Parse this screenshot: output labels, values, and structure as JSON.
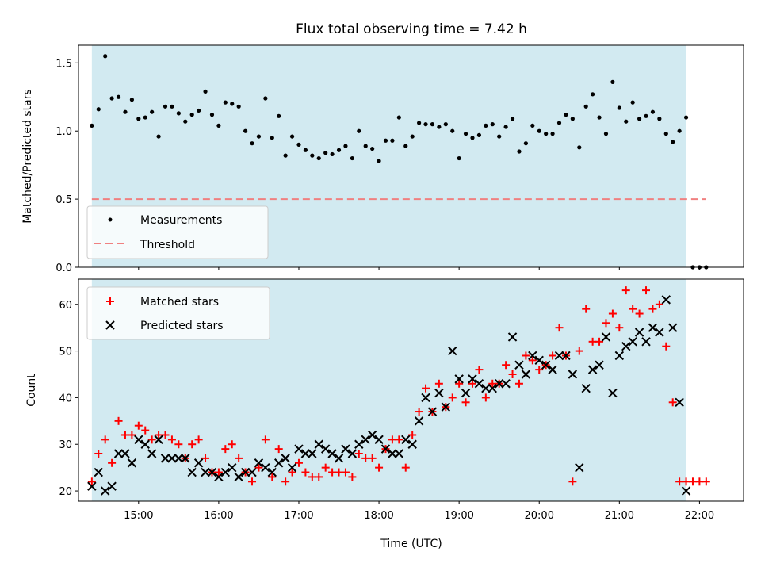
{
  "title": "Flux total observing time = 7.42 h",
  "colors": {
    "shade": "#add8e6",
    "measurement": "#000000",
    "threshold": "#f08080",
    "matched": "#ff0000",
    "predicted": "#000000"
  },
  "chart_data": [
    {
      "type": "scatter",
      "ylabel": "Matched/Predicted stars",
      "xlabel": "",
      "xlim": [
        14.25,
        22.55
      ],
      "ylim": [
        0.0,
        1.63
      ],
      "yticks": [
        0.0,
        0.5,
        1.0,
        1.5
      ],
      "ytick_labels": [
        "0.0",
        "0.5",
        "1.0",
        "1.5"
      ],
      "shaded_x_range": [
        "14:25",
        "21:50"
      ],
      "threshold": 0.5,
      "threshold_x_range": [
        "14:25",
        "22:05"
      ],
      "legend": {
        "position": "lower-left",
        "entries": [
          "Measurements",
          "Threshold"
        ]
      },
      "series": [
        {
          "name": "Measurements",
          "x": [
            "14:25",
            "14:30",
            "14:35",
            "14:40",
            "14:45",
            "14:50",
            "14:55",
            "15:00",
            "15:05",
            "15:10",
            "15:15",
            "15:20",
            "15:25",
            "15:30",
            "15:35",
            "15:40",
            "15:45",
            "15:50",
            "15:55",
            "16:00",
            "16:05",
            "16:10",
            "16:15",
            "16:20",
            "16:25",
            "16:30",
            "16:35",
            "16:40",
            "16:45",
            "16:50",
            "16:55",
            "17:00",
            "17:05",
            "17:10",
            "17:15",
            "17:20",
            "17:25",
            "17:30",
            "17:35",
            "17:40",
            "17:45",
            "17:50",
            "17:55",
            "18:00",
            "18:05",
            "18:10",
            "18:15",
            "18:20",
            "18:25",
            "18:30",
            "18:35",
            "18:40",
            "18:45",
            "18:50",
            "18:55",
            "19:00",
            "19:05",
            "19:10",
            "19:15",
            "19:20",
            "19:25",
            "19:30",
            "19:35",
            "19:40",
            "19:45",
            "19:50",
            "19:55",
            "20:00",
            "20:05",
            "20:10",
            "20:15",
            "20:20",
            "20:25",
            "20:30",
            "20:35",
            "20:40",
            "20:45",
            "20:50",
            "20:55",
            "21:00",
            "21:05",
            "21:10",
            "21:15",
            "21:20",
            "21:25",
            "21:30",
            "21:35",
            "21:40",
            "21:45",
            "21:50",
            "21:55",
            "22:00",
            "22:05"
          ],
          "y": [
            1.04,
            1.16,
            1.55,
            1.24,
            1.25,
            1.14,
            1.23,
            1.09,
            1.1,
            1.14,
            0.96,
            1.18,
            1.18,
            1.13,
            1.07,
            1.12,
            1.15,
            1.29,
            1.12,
            1.04,
            1.21,
            1.2,
            1.18,
            1.0,
            0.91,
            0.96,
            1.24,
            0.95,
            1.11,
            0.82,
            0.96,
            0.9,
            0.86,
            0.82,
            0.8,
            0.84,
            0.83,
            0.86,
            0.89,
            0.8,
            1.0,
            0.89,
            0.87,
            0.78,
            0.93,
            0.93,
            1.1,
            0.89,
            0.96,
            1.06,
            1.05,
            1.05,
            1.03,
            1.05,
            1.0,
            0.8,
            0.98,
            0.95,
            0.97,
            1.04,
            1.05,
            0.96,
            1.03,
            1.09,
            0.85,
            0.91,
            1.04,
            1.0,
            0.98,
            0.98,
            1.06,
            1.12,
            1.09,
            0.88,
            1.18,
            1.27,
            1.1,
            0.98,
            1.36,
            1.17,
            1.07,
            1.21,
            1.09,
            1.11,
            1.14,
            1.09,
            0.98,
            0.92,
            1.0,
            1.1,
            0.0,
            0.0,
            0.0
          ]
        }
      ]
    },
    {
      "type": "scatter",
      "ylabel": "Count",
      "xlabel": "Time (UTC)",
      "xlim": [
        14.25,
        22.55
      ],
      "ylim": [
        17.8,
        65.4
      ],
      "xticks": [
        "15:00",
        "16:00",
        "17:00",
        "18:00",
        "19:00",
        "20:00",
        "21:00",
        "22:00"
      ],
      "yticks": [
        20,
        30,
        40,
        50,
        60
      ],
      "ytick_labels": [
        "20",
        "30",
        "40",
        "50",
        "60"
      ],
      "shaded_x_range": [
        "14:25",
        "21:50"
      ],
      "legend": {
        "position": "top-left",
        "entries": [
          "Matched stars",
          "Predicted stars"
        ]
      },
      "series": [
        {
          "name": "Matched stars",
          "x": [
            "14:25",
            "14:30",
            "14:35",
            "14:40",
            "14:45",
            "14:50",
            "14:55",
            "15:00",
            "15:05",
            "15:10",
            "15:15",
            "15:20",
            "15:25",
            "15:30",
            "15:35",
            "15:40",
            "15:45",
            "15:50",
            "15:55",
            "16:00",
            "16:05",
            "16:10",
            "16:15",
            "16:20",
            "16:25",
            "16:30",
            "16:35",
            "16:40",
            "16:45",
            "16:50",
            "16:55",
            "17:00",
            "17:05",
            "17:10",
            "17:15",
            "17:20",
            "17:25",
            "17:30",
            "17:35",
            "17:40",
            "17:45",
            "17:50",
            "17:55",
            "18:00",
            "18:05",
            "18:10",
            "18:15",
            "18:20",
            "18:25",
            "18:30",
            "18:35",
            "18:40",
            "18:45",
            "18:50",
            "18:55",
            "19:00",
            "19:05",
            "19:10",
            "19:15",
            "19:20",
            "19:25",
            "19:30",
            "19:35",
            "19:40",
            "19:45",
            "19:50",
            "19:55",
            "20:00",
            "20:05",
            "20:10",
            "20:15",
            "20:20",
            "20:25",
            "20:30",
            "20:35",
            "20:40",
            "20:45",
            "20:50",
            "20:55",
            "21:00",
            "21:05",
            "21:10",
            "21:15",
            "21:20",
            "21:25",
            "21:30",
            "21:35",
            "21:40",
            "21:45",
            "21:50",
            "21:55",
            "22:00",
            "22:05"
          ],
          "y": [
            22,
            28,
            31,
            26,
            35,
            32,
            32,
            34,
            33,
            31,
            32,
            32,
            31,
            30,
            27,
            30,
            31,
            27,
            24,
            24,
            29,
            30,
            27,
            24,
            22,
            25,
            31,
            23,
            29,
            22,
            24,
            26,
            24,
            23,
            23,
            25,
            24,
            24,
            24,
            23,
            28,
            27,
            27,
            25,
            29,
            31,
            31,
            25,
            32,
            37,
            42,
            37,
            43,
            38,
            40,
            43,
            39,
            43,
            46,
            40,
            43,
            43,
            47,
            45,
            43,
            49,
            48,
            46,
            47,
            49,
            55,
            49,
            22,
            50,
            59,
            52,
            52,
            56,
            58,
            55,
            63,
            59,
            58,
            63,
            59,
            60,
            51,
            39,
            22,
            22,
            22,
            22,
            22
          ]
        },
        {
          "name": "Predicted stars",
          "x": [
            "14:25",
            "14:30",
            "14:35",
            "14:40",
            "14:45",
            "14:50",
            "14:55",
            "15:00",
            "15:05",
            "15:10",
            "15:15",
            "15:20",
            "15:25",
            "15:30",
            "15:35",
            "15:40",
            "15:45",
            "15:50",
            "15:55",
            "16:00",
            "16:05",
            "16:10",
            "16:15",
            "16:20",
            "16:25",
            "16:30",
            "16:35",
            "16:40",
            "16:45",
            "16:50",
            "16:55",
            "17:00",
            "17:05",
            "17:10",
            "17:15",
            "17:20",
            "17:25",
            "17:30",
            "17:35",
            "17:40",
            "17:45",
            "17:50",
            "17:55",
            "18:00",
            "18:05",
            "18:10",
            "18:15",
            "18:20",
            "18:25",
            "18:30",
            "18:35",
            "18:40",
            "18:45",
            "18:50",
            "18:55",
            "19:00",
            "19:05",
            "19:10",
            "19:15",
            "19:20",
            "19:25",
            "19:30",
            "19:35",
            "19:40",
            "19:45",
            "19:50",
            "19:55",
            "20:00",
            "20:05",
            "20:10",
            "20:15",
            "20:20",
            "20:25",
            "20:30",
            "20:35",
            "20:40",
            "20:45",
            "20:50",
            "20:55",
            "21:00",
            "21:05",
            "21:10",
            "21:15",
            "21:20",
            "21:25",
            "21:30",
            "21:35",
            "21:40",
            "21:45",
            "21:50"
          ],
          "y": [
            21,
            24,
            20,
            21,
            28,
            28,
            26,
            31,
            30,
            28,
            31,
            27,
            27,
            27,
            27,
            24,
            26,
            24,
            24,
            23,
            24,
            25,
            23,
            24,
            24,
            26,
            25,
            24,
            26,
            27,
            25,
            29,
            28,
            28,
            30,
            29,
            28,
            27,
            29,
            28,
            30,
            31,
            32,
            31,
            29,
            28,
            28,
            31,
            30,
            35,
            40,
            37,
            41,
            38,
            50,
            44,
            41,
            44,
            43,
            42,
            42,
            43,
            43,
            53,
            47,
            45,
            49,
            48,
            47,
            46,
            49,
            49,
            45,
            25,
            42,
            46,
            47,
            53,
            41,
            49,
            51,
            52,
            54,
            52,
            55,
            54,
            61,
            55,
            39,
            20
          ]
        }
      ]
    }
  ]
}
